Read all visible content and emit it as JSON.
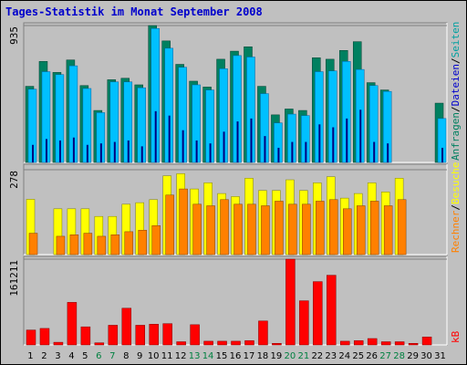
{
  "chart_data": {
    "type": "bar",
    "title": "Tages-Statistik im Monat September 2008",
    "categories": [
      "1",
      "2",
      "3",
      "4",
      "5",
      "6",
      "7",
      "8",
      "9",
      "10",
      "11",
      "12",
      "13",
      "14",
      "15",
      "16",
      "17",
      "18",
      "19",
      "20",
      "21",
      "22",
      "23",
      "24",
      "25",
      "26",
      "27",
      "28",
      "29",
      "30",
      "31"
    ],
    "weekend_days": [
      "6",
      "7",
      "13",
      "14",
      "20",
      "21",
      "27",
      "28"
    ],
    "colors": {
      "title": "#0000cc",
      "weekday_tick": "#000000",
      "weekend_tick": "#008040",
      "anfragen": "#008060",
      "dateien": "#00c0ff",
      "seiten": "#00a0a0",
      "besuche": "#ffff00",
      "rechner": "#ff8000",
      "kb": "#ff0000",
      "panel_bg": "#c0c0c0",
      "frame": "#000000"
    },
    "panels": [
      {
        "id": "top",
        "ymax_label": "935",
        "ymax": 935,
        "legend": [
          {
            "label": "Anfragen",
            "color": "#008060"
          },
          {
            "sep": "/"
          },
          {
            "label": "Dateien",
            "color": "#0000cc"
          },
          {
            "sep": "/"
          },
          {
            "label": "Seiten",
            "color": "#00a0a0"
          }
        ],
        "series": [
          {
            "name": "Anfragen",
            "values": [
              520,
              690,
              615,
              700,
              525,
              355,
              565,
              575,
              530,
              935,
              830,
              670,
              555,
              515,
              705,
              760,
              790,
              520,
              325,
              365,
              355,
              715,
              705,
              765,
              825,
              545,
              495,
              0,
              0,
              0,
              405
            ]
          },
          {
            "name": "Dateien",
            "values": [
              500,
              620,
              600,
              660,
              505,
              340,
              550,
              550,
              510,
              915,
              780,
              650,
              530,
              495,
              640,
              730,
              720,
              470,
              270,
              330,
              320,
              620,
              625,
              690,
              635,
              525,
              485,
              0,
              0,
              0,
              300
            ]
          },
          {
            "name": "Seiten",
            "values": [
              120,
              160,
              150,
              170,
              120,
              130,
              140,
              150,
              110,
              350,
              320,
              220,
              150,
              130,
              210,
              280,
              300,
              180,
              100,
              140,
              140,
              260,
              240,
              300,
              360,
              140,
              130,
              0,
              0,
              0,
              100
            ]
          }
        ]
      },
      {
        "id": "middle",
        "ymax_label": "278",
        "ymax": 278,
        "legend": [
          {
            "label": "Rechner",
            "color": "#ff8000"
          },
          {
            "sep": "/"
          },
          {
            "label": "Besuche",
            "color": "#ffff00"
          }
        ],
        "series": [
          {
            "name": "Besuche",
            "values": [
              181,
              0,
              150,
              150,
              150,
              125,
              125,
              165,
              170,
              180,
              258,
              265,
              215,
              235,
              200,
              190,
              250,
              210,
              210,
              245,
              210,
              235,
              255,
              185,
              200,
              235,
              205,
              250,
              0,
              0,
              0
            ]
          },
          {
            "name": "Rechner",
            "values": [
              70,
              0,
              60,
              65,
              70,
              60,
              65,
              75,
              80,
              95,
              195,
              215,
              165,
              160,
              180,
              165,
              165,
              160,
              175,
              165,
              165,
              175,
              180,
              150,
              160,
              175,
              160,
              180,
              0,
              0,
              0
            ]
          }
        ]
      },
      {
        "id": "bottom",
        "ymax_label": "161211",
        "ymax": 161211,
        "legend": [
          {
            "label": "kB",
            "color": "#ff0000"
          }
        ],
        "series": [
          {
            "name": "kB",
            "values": [
              28000,
              31000,
              5000,
              80000,
              34000,
              4000,
              37000,
              69000,
              37000,
              39000,
              40000,
              6000,
              38000,
              7000,
              7000,
              7000,
              8000,
              45000,
              3000,
              161211,
              83000,
              119000,
              131000,
              7000,
              8000,
              12000,
              6000,
              6000,
              3000,
              15000,
              0
            ]
          }
        ]
      }
    ]
  }
}
